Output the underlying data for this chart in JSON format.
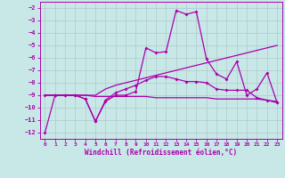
{
  "xlabel": "Windchill (Refroidissement éolien,°C)",
  "xlim": [
    -0.5,
    23.5
  ],
  "ylim": [
    -12.5,
    -1.5
  ],
  "yticks": [
    -12,
    -11,
    -10,
    -9,
    -8,
    -7,
    -6,
    -5,
    -4,
    -3,
    -2
  ],
  "xticks": [
    0,
    1,
    2,
    3,
    4,
    5,
    6,
    7,
    8,
    9,
    10,
    11,
    12,
    13,
    14,
    15,
    16,
    17,
    18,
    19,
    20,
    21,
    22,
    23
  ],
  "background_color": "#c8e8e8",
  "line_color": "#aa00aa",
  "grid_color": "#b0c8c8",
  "line1_x": [
    0,
    1,
    2,
    3,
    4,
    5,
    6,
    7,
    8,
    9,
    10,
    11,
    12,
    13,
    14,
    15,
    16,
    17,
    18,
    19,
    20,
    21,
    22,
    23
  ],
  "line1_y": [
    -12,
    -9,
    -9,
    -9,
    -9.3,
    -11.1,
    -9.5,
    -9,
    -9,
    -8.7,
    -5.2,
    -5.6,
    -5.5,
    -2.2,
    -2.5,
    -2.3,
    -6.1,
    -7.3,
    -7.7,
    -6.3,
    -9.0,
    -8.5,
    -7.2,
    -9.6
  ],
  "line2_x": [
    0,
    1,
    2,
    3,
    4,
    5,
    6,
    7,
    8,
    9,
    10,
    11,
    12,
    13,
    14,
    15,
    16,
    17,
    18,
    19,
    20,
    21,
    22,
    23
  ],
  "line2_y": [
    -9,
    -9,
    -9,
    -9,
    -9,
    -9,
    -8.5,
    -8.2,
    -8.0,
    -7.8,
    -7.6,
    -7.4,
    -7.2,
    -7.0,
    -6.8,
    -6.6,
    -6.4,
    -6.2,
    -6.0,
    -5.8,
    -5.6,
    -5.4,
    -5.2,
    -5.0
  ],
  "line3_x": [
    0,
    1,
    2,
    3,
    4,
    5,
    6,
    7,
    8,
    9,
    10,
    11,
    12,
    13,
    14,
    15,
    16,
    17,
    18,
    19,
    20,
    21,
    22,
    23
  ],
  "line3_y": [
    -9,
    -9,
    -9,
    -9,
    -9,
    -9.1,
    -9.1,
    -9.1,
    -9.1,
    -9.1,
    -9.1,
    -9.2,
    -9.2,
    -9.2,
    -9.2,
    -9.2,
    -9.2,
    -9.3,
    -9.3,
    -9.3,
    -9.3,
    -9.3,
    -9.4,
    -9.5
  ],
  "line4_x": [
    0,
    1,
    2,
    3,
    4,
    5,
    6,
    7,
    8,
    9,
    10,
    11,
    12,
    13,
    14,
    15,
    16,
    17,
    18,
    19,
    20,
    21,
    22,
    23
  ],
  "line4_y": [
    -9,
    -9,
    -9,
    -9,
    -9.3,
    -11.1,
    -9.4,
    -8.8,
    -8.5,
    -8.2,
    -7.8,
    -7.5,
    -7.5,
    -7.7,
    -7.9,
    -7.9,
    -8.0,
    -8.5,
    -8.6,
    -8.6,
    -8.6,
    -9.2,
    -9.4,
    -9.6
  ]
}
